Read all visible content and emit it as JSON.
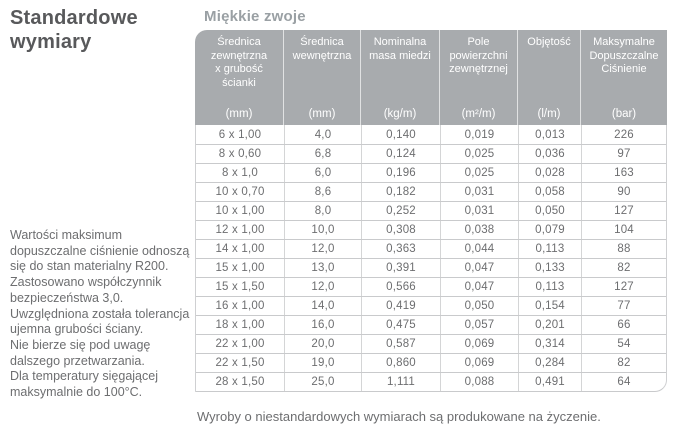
{
  "left": {
    "heading": "Standardowe\nwymiary",
    "note": "Wartości maksimum\ndopuszczalne ciśnienie odnoszą\nsię do stan materialny R200.\nZastosowano współczynnik\nbezpieczeństwa 3,0.\nUwzględniona została tolerancja\nujemna grubości ściany.\nNie bierze się pod uwagę\ndalszego przetwarzania.\nDla temperatury sięgającej\nmaksymalnie do 100°C."
  },
  "table": {
    "title": "Miękkie zwoje",
    "columns": [
      {
        "label": "Średnica\nzewnętrzna\nx grubość\nścianki",
        "unit": "(mm)"
      },
      {
        "label": "Średnica\nwewnętrzna",
        "unit": "(mm)"
      },
      {
        "label": "Nominalna\nmasa miedzi",
        "unit": "(kg/m)"
      },
      {
        "label": "Pole\npowierzchni\nzewnętrznej",
        "unit": "(m²/m)"
      },
      {
        "label": "Objętość",
        "unit": "(l/m)"
      },
      {
        "label": "Maksymalne\nDopuszczalne\nCiśnienie",
        "unit": "(bar)"
      }
    ],
    "rows": [
      [
        "6 x 1,00",
        "4,0",
        "0,140",
        "0,019",
        "0,013",
        "226"
      ],
      [
        "8 x 0,60",
        "6,8",
        "0,124",
        "0,025",
        "0,036",
        "97"
      ],
      [
        "8 x 1,0",
        "6,0",
        "0,196",
        "0,025",
        "0,028",
        "163"
      ],
      [
        "10 x 0,70",
        "8,6",
        "0,182",
        "0,031",
        "0,058",
        "90"
      ],
      [
        "10 x 1,00",
        "8,0",
        "0,252",
        "0,031",
        "0,050",
        "127"
      ],
      [
        "12 x 1,00",
        "10,0",
        "0,308",
        "0,038",
        "0,079",
        "104"
      ],
      [
        "14 x 1,00",
        "12,0",
        "0,363",
        "0,044",
        "0,113",
        "88"
      ],
      [
        "15 x 1,00",
        "13,0",
        "0,391",
        "0,047",
        "0,133",
        "82"
      ],
      [
        "15 x 1,50",
        "12,0",
        "0,566",
        "0,047",
        "0,113",
        "127"
      ],
      [
        "16 x 1,00",
        "14,0",
        "0,419",
        "0,050",
        "0,154",
        "77"
      ],
      [
        "18 x 1,00",
        "16,0",
        "0,475",
        "0,057",
        "0,201",
        "66"
      ],
      [
        "22 x 1,00",
        "20,0",
        "0,587",
        "0,069",
        "0,314",
        "54"
      ],
      [
        "22 x 1,50",
        "19,0",
        "0,860",
        "0,069",
        "0,284",
        "82"
      ],
      [
        "28 x 1,50",
        "25,0",
        "1,111",
        "0,088",
        "0,491",
        "64"
      ]
    ],
    "footnote": "Wyroby o niestandardowych wymiarach są produkowane na życzenie."
  },
  "colors": {
    "header_bg": "#a8abae",
    "header_text": "#ffffff",
    "body_text": "#6d6e70",
    "heading_text": "#58595b",
    "title_text": "#9aa0a4",
    "row_border": "#c9cacc"
  }
}
